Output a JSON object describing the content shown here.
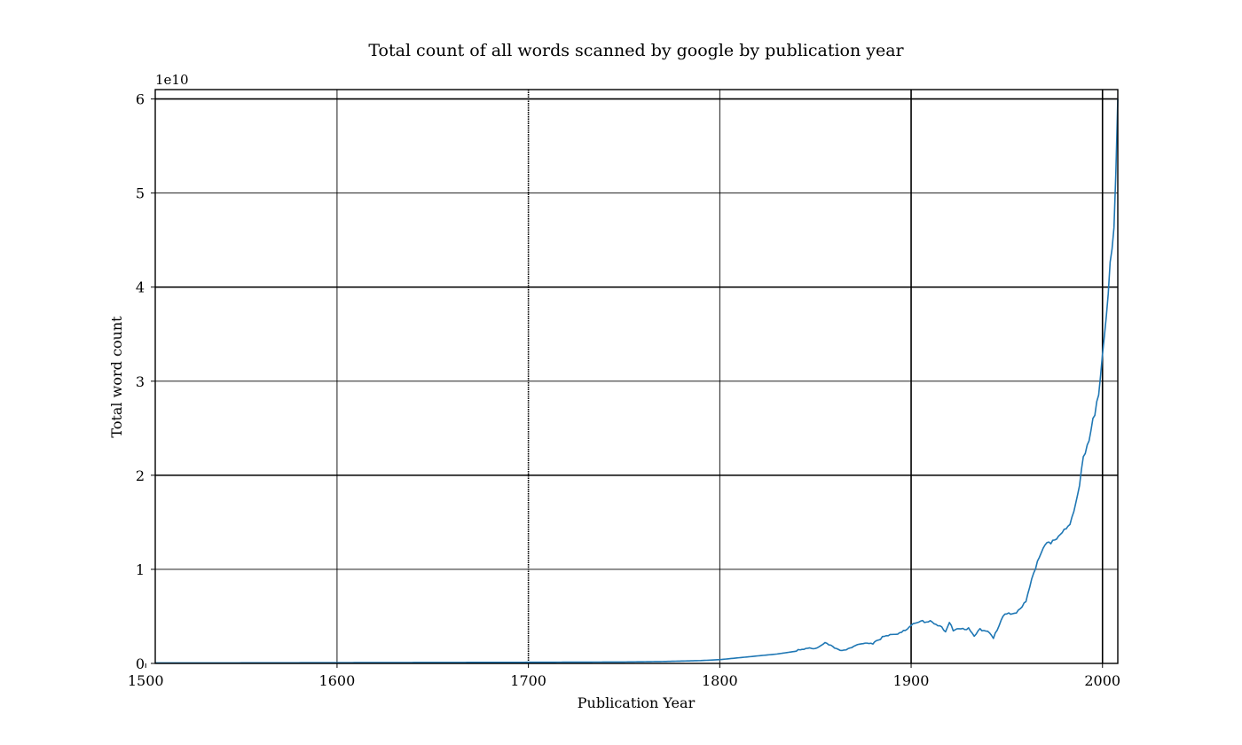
{
  "chart_data": {
    "type": "line",
    "title": "Total count of all words scanned by google by publication year",
    "xlabel": "Publication Year",
    "ylabel": "Total word count",
    "y_offset_label": "1e10",
    "xlim": [
      1505,
      2008
    ],
    "ylim": [
      0,
      6.1
    ],
    "y_units": "1e10 words",
    "grid": true,
    "x_ticks": [
      {
        "value": 1500,
        "label": "1500"
      },
      {
        "value": 1600,
        "label": "1600"
      },
      {
        "value": 1700,
        "label": "1700"
      },
      {
        "value": 1800,
        "label": "1800"
      },
      {
        "value": 1900,
        "label": "1900"
      },
      {
        "value": 2000,
        "label": "2000"
      }
    ],
    "y_ticks": [
      {
        "value": 0,
        "label": "0"
      },
      {
        "value": 1,
        "label": "1"
      },
      {
        "value": 2,
        "label": "2"
      },
      {
        "value": 3,
        "label": "3"
      },
      {
        "value": 4,
        "label": "4"
      },
      {
        "value": 5,
        "label": "5"
      },
      {
        "value": 6,
        "label": "6"
      }
    ],
    "series": [
      {
        "color": "#1f77b4",
        "x": [
          1505,
          1550,
          1600,
          1650,
          1700,
          1750,
          1770,
          1790,
          1800,
          1810,
          1820,
          1830,
          1840,
          1850,
          1855,
          1860,
          1863,
          1870,
          1880,
          1885,
          1890,
          1895,
          1900,
          1905,
          1910,
          1915,
          1918,
          1920,
          1922,
          1925,
          1930,
          1933,
          1936,
          1940,
          1943,
          1945,
          1948,
          1950,
          1955,
          1960,
          1963,
          1965,
          1968,
          1970,
          1973,
          1975,
          1978,
          1980,
          1983,
          1985,
          1988,
          1990,
          1993,
          1995,
          1998,
          2000,
          2002,
          2004,
          2006,
          2007,
          2008
        ],
        "y": [
          0.005,
          0.006,
          0.008,
          0.01,
          0.012,
          0.015,
          0.02,
          0.03,
          0.04,
          0.06,
          0.08,
          0.1,
          0.13,
          0.17,
          0.22,
          0.16,
          0.14,
          0.18,
          0.22,
          0.28,
          0.3,
          0.34,
          0.4,
          0.44,
          0.46,
          0.4,
          0.33,
          0.42,
          0.36,
          0.38,
          0.37,
          0.28,
          0.36,
          0.35,
          0.28,
          0.34,
          0.5,
          0.52,
          0.55,
          0.65,
          0.88,
          1.0,
          1.2,
          1.28,
          1.3,
          1.28,
          1.35,
          1.42,
          1.5,
          1.65,
          1.9,
          2.15,
          2.35,
          2.6,
          2.9,
          3.3,
          3.7,
          4.2,
          4.6,
          5.1,
          6.0
        ]
      }
    ]
  }
}
